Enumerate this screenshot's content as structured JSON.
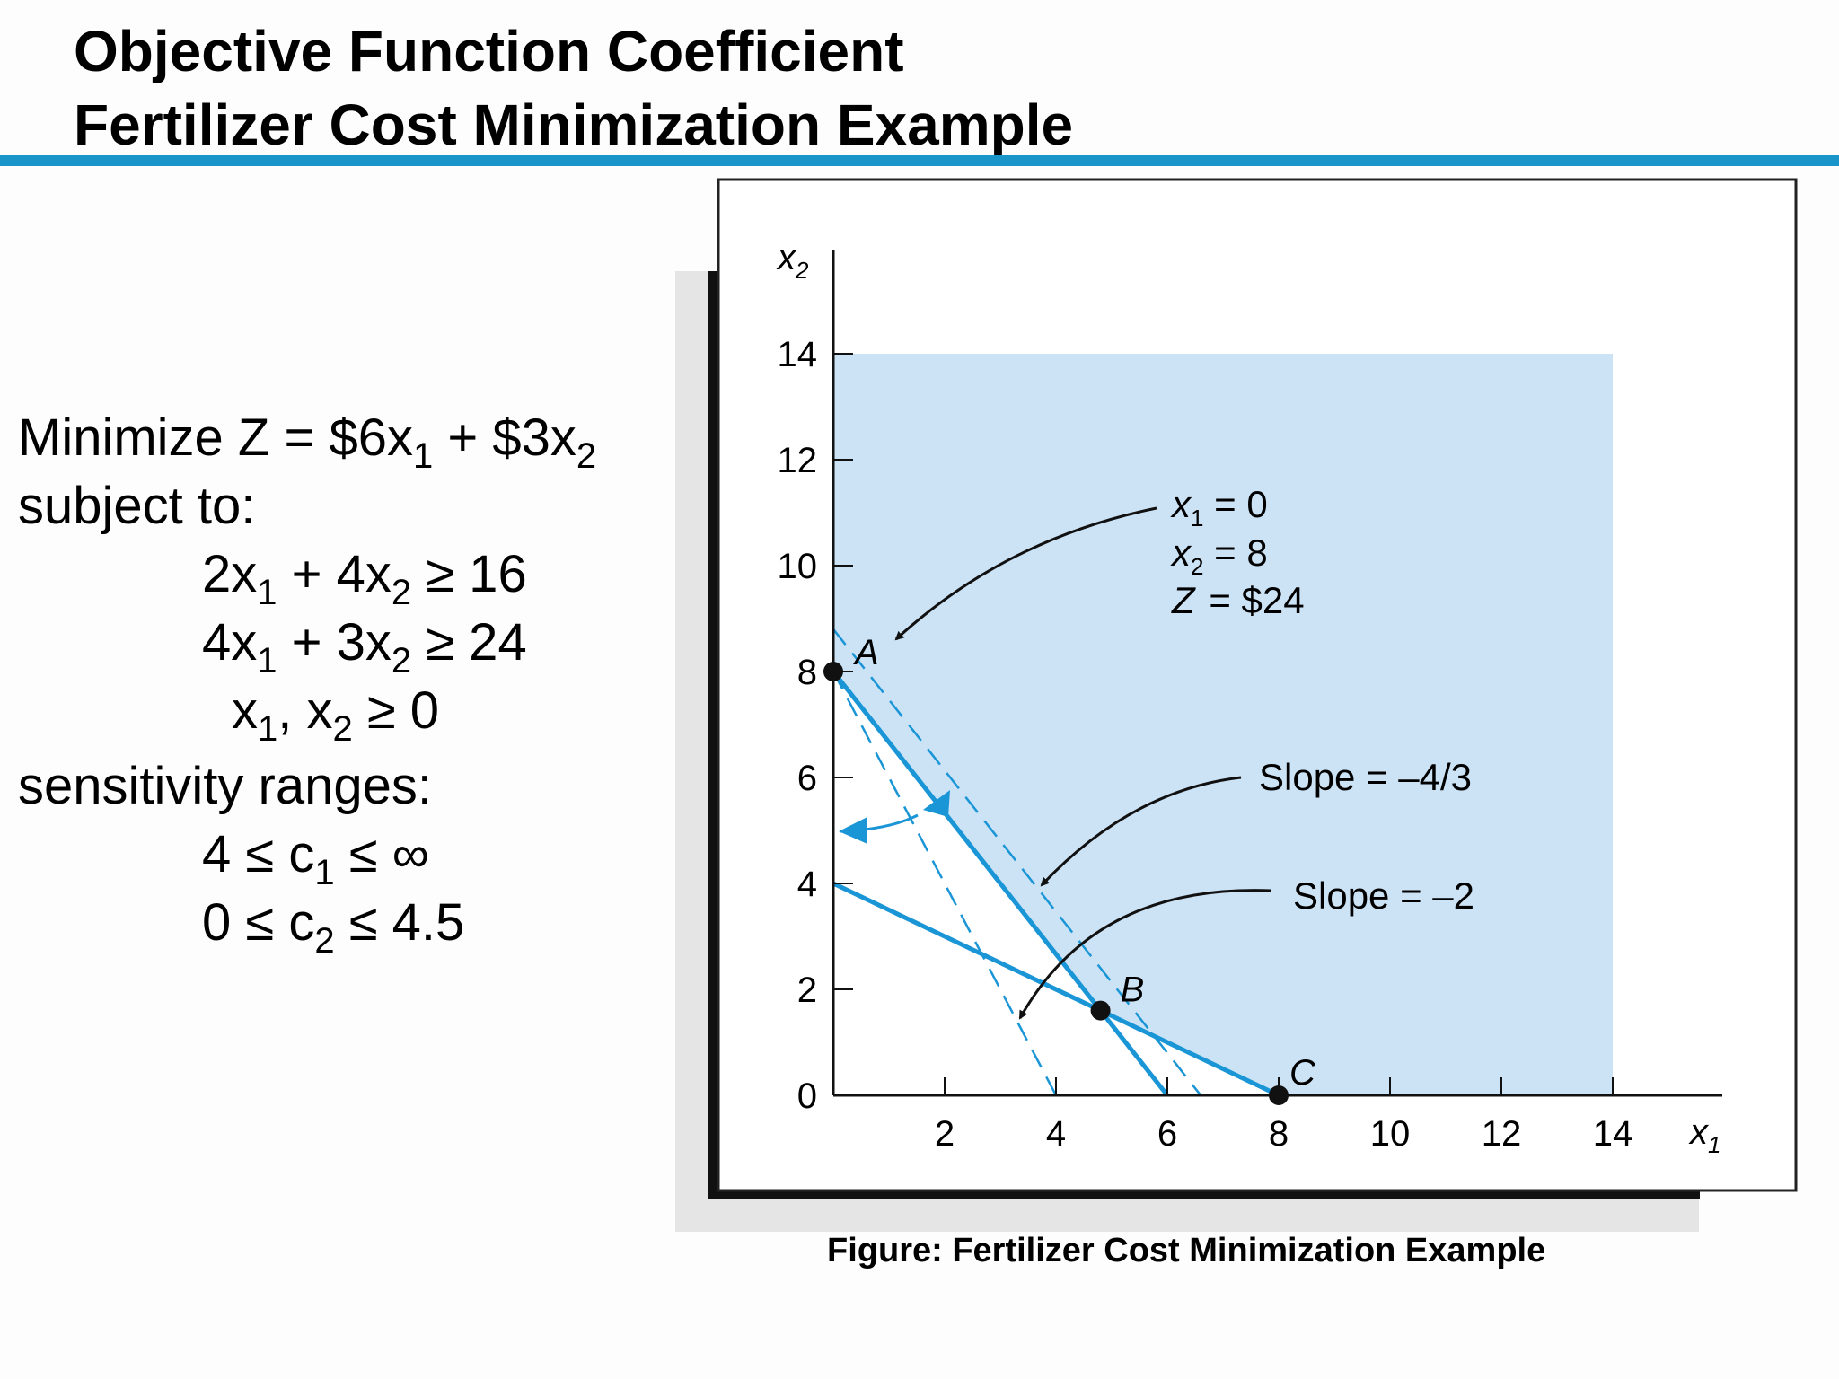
{
  "slide": {
    "title_line1": "Objective Function Coefficient",
    "title_line2": "Fertilizer Cost Minimization Example",
    "caption": "Figure: Fertilizer Cost Minimization Example"
  },
  "model": {
    "objective_prefix": "Minimize Z = $6x",
    "objective_mid": " + $3x",
    "subject_to": "subject to:",
    "c1_a": "2x",
    "c1_b": " + 4x",
    "c1_c": " ≥ 16",
    "c2_a": "4x",
    "c2_b": " + 3x",
    "c2_c": " ≥ 24",
    "nn_a": "x",
    "nn_b": ", x",
    "nn_c": " ≥ 0",
    "sens_title": "sensitivity ranges:",
    "s1_a": "4 ≤ c",
    "s1_b": " ≤ ∞",
    "s2_a": "0 ≤ c",
    "s2_b": " ≤ 4.5",
    "sub1": "1",
    "sub2": "2"
  },
  "graph": {
    "x_axis_label": "x",
    "y_axis_label": "x",
    "x_sub": "1",
    "y_sub": "2",
    "x_ticks": [
      "2",
      "4",
      "6",
      "8",
      "10",
      "12",
      "14"
    ],
    "y_ticks": [
      "0",
      "2",
      "4",
      "6",
      "8",
      "10",
      "12",
      "14"
    ],
    "points": [
      {
        "label": "A",
        "x": 0,
        "y": 8
      },
      {
        "label": "B",
        "x": 4.8,
        "y": 1.6
      },
      {
        "label": "C",
        "x": 8,
        "y": 0
      }
    ],
    "annotation_A": {
      "l1": "x",
      "l1v": " = 0",
      "l2": "x",
      "l2v": " = 8",
      "l3": "Z",
      "l3v": " = $24"
    },
    "slope1_label": "Slope = –4/3",
    "slope2_label": "Slope = –2",
    "colors": {
      "feasible": "#cce3f6",
      "line": "#1a95d6",
      "arrow_blue": "#1a95d6"
    }
  }
}
